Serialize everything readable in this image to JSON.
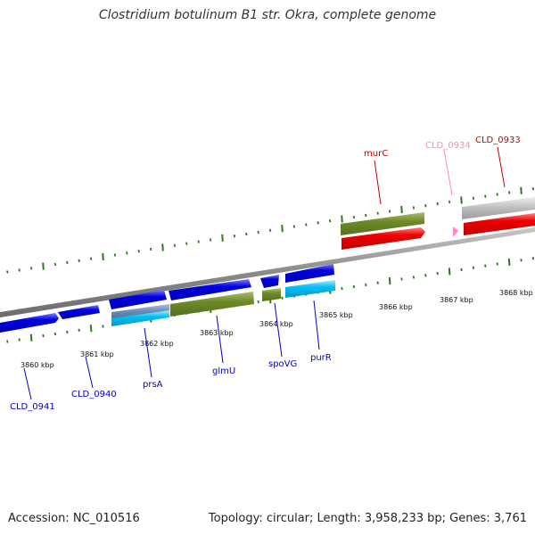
{
  "title": "Clostridium botulinum B1 str. Okra, complete genome",
  "footer": {
    "accession": "Accession: NC_010516",
    "topology": "Topology: circular; Length: 3,958,233 bp; Genes: 3,761"
  },
  "colors": {
    "forward_strand": "#0000e0",
    "reverse_strand": "#ee0000",
    "cds_green": "#6e8a28",
    "cds_cyan": "#00c0f0",
    "cds_grey": "#b8b8b8",
    "tick_green": "#2d7a1e",
    "backbone": "#8a8a8a"
  },
  "scale": {
    "ticks": [
      {
        "label": "3860 kbp"
      },
      {
        "label": "3861 kbp"
      },
      {
        "label": "3862 kbp"
      },
      {
        "label": "3863 kbp"
      },
      {
        "label": "3864 kbp"
      },
      {
        "label": "3865 kbp"
      },
      {
        "label": "3866 kbp"
      },
      {
        "label": "3867 kbp"
      },
      {
        "label": "3868 kbp"
      }
    ]
  },
  "genes": {
    "CLD_0941": "CLD_0941",
    "CLD_0940": "CLD_0940",
    "prsA": "prsA",
    "glmU": "glmU",
    "spoVG": "spoVG",
    "purR": "purR",
    "murC": "murC",
    "CLD_0934": "CLD_0934",
    "CLD_0933": "CLD_0933"
  }
}
